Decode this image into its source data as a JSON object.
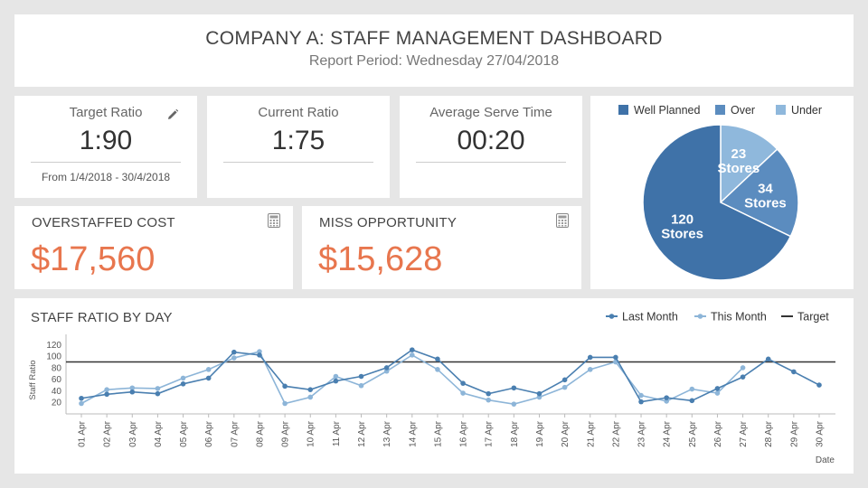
{
  "header": {
    "title": "COMPANY A: STAFF MANAGEMENT DASHBOARD",
    "subtitle": "Report Period: Wednesday 27/04/2018"
  },
  "kpis": {
    "target": {
      "label": "Target Ratio",
      "value": "1:90",
      "note": "From 1/4/2018 - 30/4/2018",
      "icon": "pencil-icon"
    },
    "current": {
      "label": "Current Ratio",
      "value": "1:75"
    },
    "serve": {
      "label": "Average Serve Time",
      "value": "00:20"
    }
  },
  "costs": {
    "overstaffed": {
      "label": "OVERSTAFFED COST",
      "value": "$17,560",
      "icon": "calculator-icon"
    },
    "miss": {
      "label": "MISS OPPORTUNITY",
      "value": "$15,628",
      "icon": "calculator-icon"
    }
  },
  "colors": {
    "accent_orange": "#e8764e",
    "last_month": "#4a7fb0",
    "this_month": "#8db5d8",
    "target": "#333333",
    "pie_well_planned": "#3f72a8",
    "pie_over": "#5b8cbf",
    "pie_under": "#8fb8dc"
  },
  "chart_data": [
    {
      "type": "pie",
      "legend": [
        "Well Planned",
        "Over",
        "Under"
      ],
      "values": [
        120,
        34,
        23
      ],
      "slice_labels": [
        {
          "count": "120",
          "unit": "Stores"
        },
        {
          "count": "34",
          "unit": "Stores"
        },
        {
          "count": "23",
          "unit": "Stores"
        }
      ],
      "legend_position": "top"
    },
    {
      "type": "line",
      "title": "STAFF RATIO BY DAY",
      "xlabel": "Date",
      "ylabel": "Staff Ratio",
      "ylim": [
        0,
        130
      ],
      "yticks": [
        20,
        40,
        60,
        80,
        100,
        120
      ],
      "categories": [
        "01 Apr",
        "02 Apr",
        "03 Apr",
        "04 Apr",
        "05 Apr",
        "06 Apr",
        "07 Apr",
        "08 Apr",
        "09 Apr",
        "10 Apr",
        "11 Apr",
        "12 Apr",
        "13 Apr",
        "14 Apr",
        "15 Apr",
        "16 Apr",
        "17 Apr",
        "18 Apr",
        "19 Apr",
        "20 Apr",
        "21 Apr",
        "22 Apr",
        "23 Apr",
        "24 Apr",
        "25 Apr",
        "26 Apr",
        "27 Apr",
        "28 Apr",
        "29 Apr",
        "30 Apr"
      ],
      "series": [
        {
          "name": "Last Month",
          "values": [
            27,
            34,
            38,
            35,
            52,
            62,
            107,
            102,
            48,
            42,
            57,
            65,
            80,
            111,
            95,
            53,
            35,
            45,
            35,
            59,
            98,
            98,
            21,
            28,
            23,
            44,
            64,
            95,
            73,
            50
          ]
        },
        {
          "name": "This Month",
          "values": [
            18,
            42,
            45,
            44,
            62,
            77,
            97,
            108,
            18,
            29,
            65,
            49,
            74,
            102,
            77,
            36,
            24,
            17,
            29,
            46,
            77,
            90,
            32,
            22,
            43,
            36,
            80,
            null,
            null,
            null
          ]
        }
      ],
      "target": {
        "name": "Target",
        "value": 90
      },
      "legend_position": "top-right",
      "grid": false
    }
  ]
}
